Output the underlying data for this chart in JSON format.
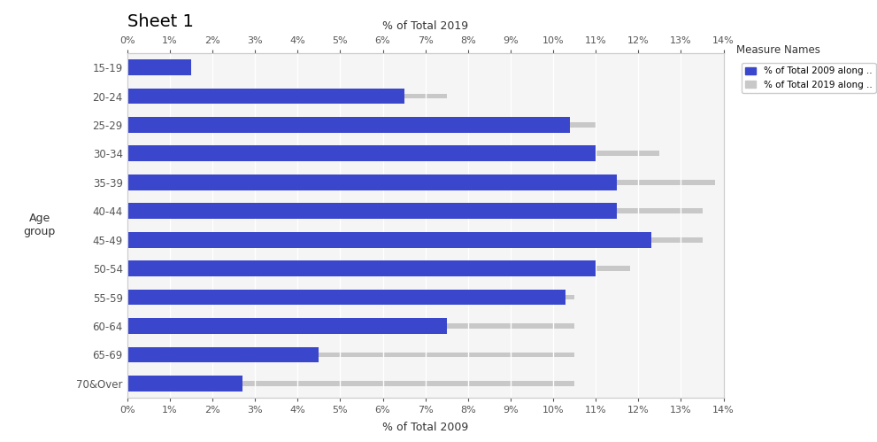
{
  "title": "Sheet 1",
  "xlabel_top": "% of Total 2019",
  "xlabel_bottom": "% of Total 2009",
  "ylabel": "Age\ngroup",
  "age_groups": [
    "15-19",
    "20-24",
    "25-29",
    "30-34",
    "35-39",
    "40-44",
    "45-49",
    "50-54",
    "55-59",
    "60-64",
    "65-69",
    "70&Over"
  ],
  "values_2009": [
    1.5,
    6.5,
    10.4,
    11.0,
    11.5,
    11.5,
    12.3,
    11.0,
    10.3,
    7.5,
    4.5,
    2.7
  ],
  "values_2019": [
    1.5,
    7.5,
    11.0,
    12.5,
    13.8,
    13.5,
    13.5,
    11.8,
    10.5,
    10.5,
    10.5,
    10.5
  ],
  "bar_color_2009": "#3A47CC",
  "bar_color_2019": "#C8C8C8",
  "background_color": "#ffffff",
  "plot_bg_color": "#f5f5f5",
  "xlim": [
    0,
    14
  ],
  "xtick_labels": [
    "0%",
    "1%",
    "2%",
    "3%",
    "4%",
    "5%",
    "6%",
    "7%",
    "8%",
    "9%",
    "10%",
    "11%",
    "12%",
    "13%",
    "14%"
  ],
  "xtick_values": [
    0,
    1,
    2,
    3,
    4,
    5,
    6,
    7,
    8,
    9,
    10,
    11,
    12,
    13,
    14
  ],
  "legend_title": "Measure Names",
  "legend_labels": [
    "% of Total 2009 along ..",
    "% of Total 2019 along .."
  ],
  "legend_colors": [
    "#3A47CC",
    "#C8C8C8"
  ],
  "blue_bar_height": 0.55,
  "gray_bar_height": 0.18,
  "figsize": [
    9.91,
    4.99
  ],
  "dpi": 100
}
